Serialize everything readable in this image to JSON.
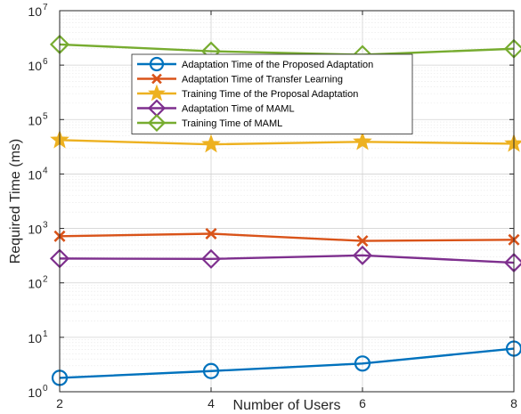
{
  "chart_data": {
    "type": "line",
    "title": "",
    "xlabel": "Number of Users",
    "ylabel": "Required Time (ms)",
    "x": [
      2,
      4,
      6,
      8
    ],
    "xlim": [
      2,
      8
    ],
    "xticks": [
      "2",
      "4",
      "6",
      "8"
    ],
    "yscale": "log",
    "ylim": [
      1,
      10000000
    ],
    "yticks": [
      {
        "base": "10",
        "exp": "0"
      },
      {
        "base": "10",
        "exp": "1"
      },
      {
        "base": "10",
        "exp": "2"
      },
      {
        "base": "10",
        "exp": "3"
      },
      {
        "base": "10",
        "exp": "4"
      },
      {
        "base": "10",
        "exp": "5"
      },
      {
        "base": "10",
        "exp": "6"
      },
      {
        "base": "10",
        "exp": "7"
      }
    ],
    "grid": true,
    "legend_position": "top-center",
    "series": [
      {
        "name": "Adaptation Time of the Proposed Adaptation",
        "marker": "circle",
        "color": "#0072BD",
        "values": [
          1.8,
          2.4,
          3.3,
          6.2
        ]
      },
      {
        "name": "Adaptation Time of Transfer Learning",
        "marker": "x",
        "color": "#D95319",
        "values": [
          720,
          800,
          590,
          620
        ]
      },
      {
        "name": "Training Time of the Proposal Adaptation",
        "marker": "star",
        "color": "#EDB120",
        "values": [
          42000,
          35000,
          39000,
          36000
        ]
      },
      {
        "name": "Adaptation Time of MAML",
        "marker": "diamond",
        "color": "#7E2F8E",
        "values": [
          280,
          275,
          320,
          235
        ]
      },
      {
        "name": "Training Time of MAML",
        "marker": "diamond",
        "color": "#77AC30",
        "values": [
          2400000,
          1800000,
          1550000,
          2000000
        ]
      }
    ]
  }
}
